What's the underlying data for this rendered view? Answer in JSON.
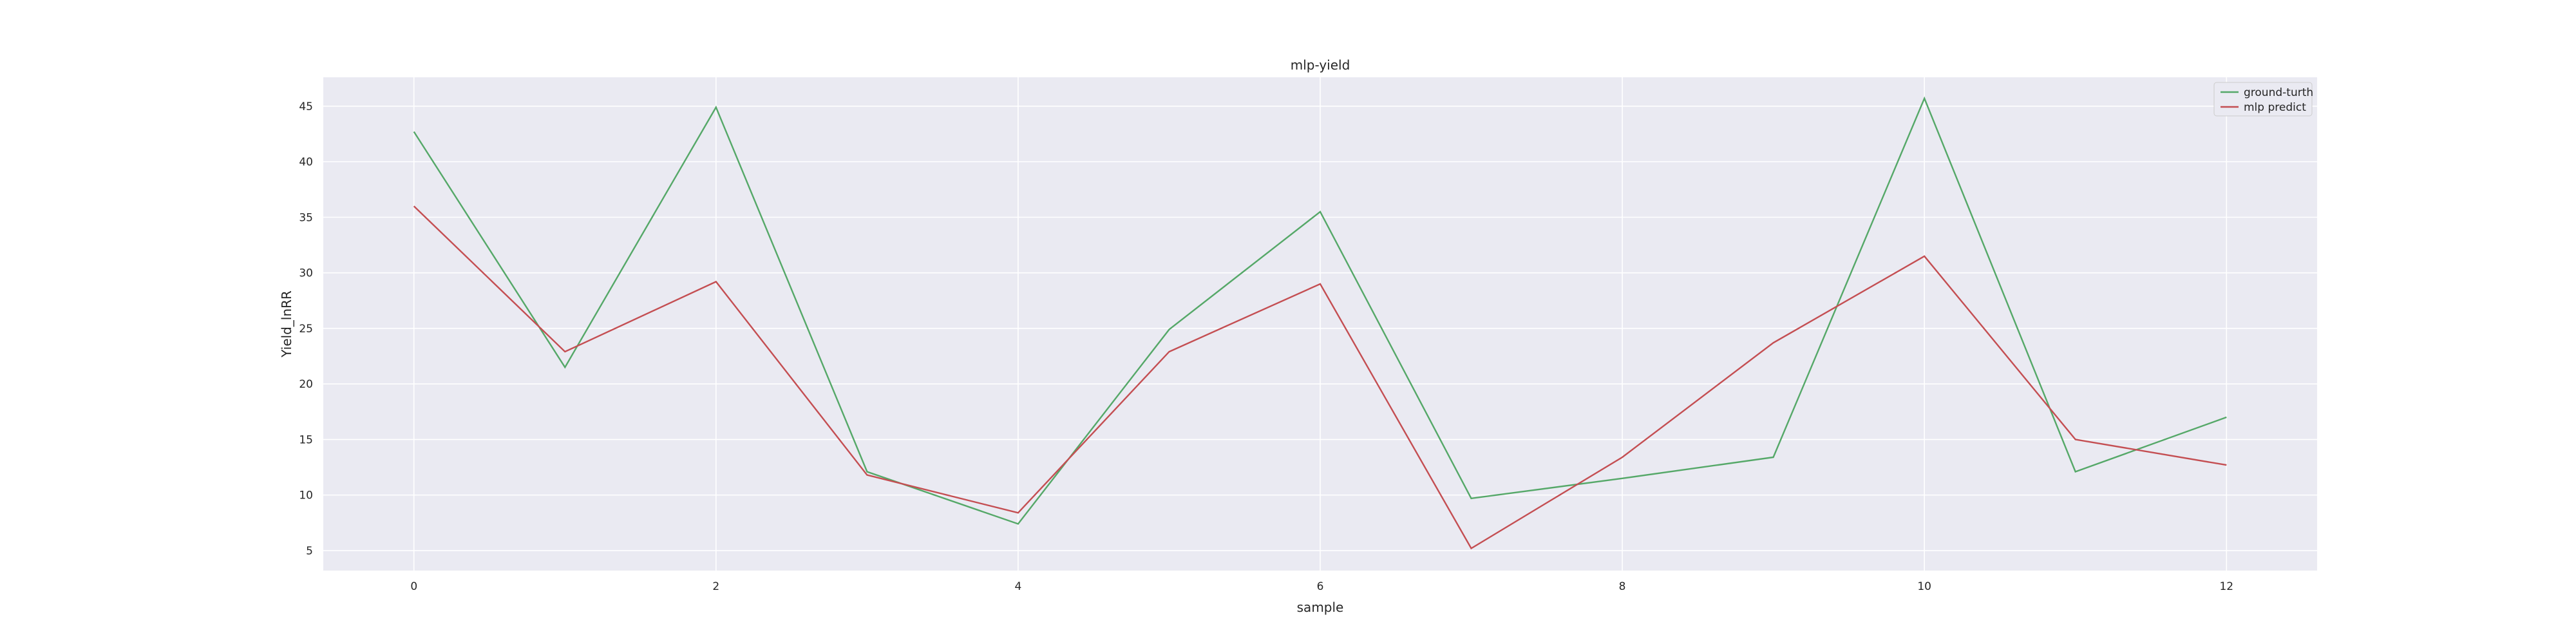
{
  "chart_data": {
    "type": "line",
    "title": "mlp-yield",
    "xlabel": "sample",
    "ylabel": "Yield_lnRR",
    "x": [
      0,
      1,
      2,
      3,
      4,
      5,
      6,
      7,
      8,
      9,
      10,
      11,
      12
    ],
    "xlim": [
      -0.6,
      12.6
    ],
    "ylim": [
      3.2,
      47.6
    ],
    "xticks": [
      0,
      2,
      4,
      6,
      8,
      10,
      12
    ],
    "yticks": [
      5,
      10,
      15,
      20,
      25,
      30,
      35,
      40,
      45
    ],
    "grid": true,
    "background": "#eaeaf2",
    "legend_position": "top-right",
    "series": [
      {
        "name": "ground-turth",
        "color": "#55a868",
        "values": [
          42.7,
          21.5,
          44.9,
          12.1,
          7.4,
          24.9,
          35.5,
          9.7,
          11.5,
          13.4,
          45.7,
          12.1,
          17.0
        ]
      },
      {
        "name": "mlp predict",
        "color": "#c44e52",
        "values": [
          36.0,
          22.9,
          29.2,
          11.8,
          8.4,
          22.9,
          29.0,
          5.2,
          13.4,
          23.7,
          31.5,
          15.0,
          12.7
        ]
      }
    ]
  }
}
